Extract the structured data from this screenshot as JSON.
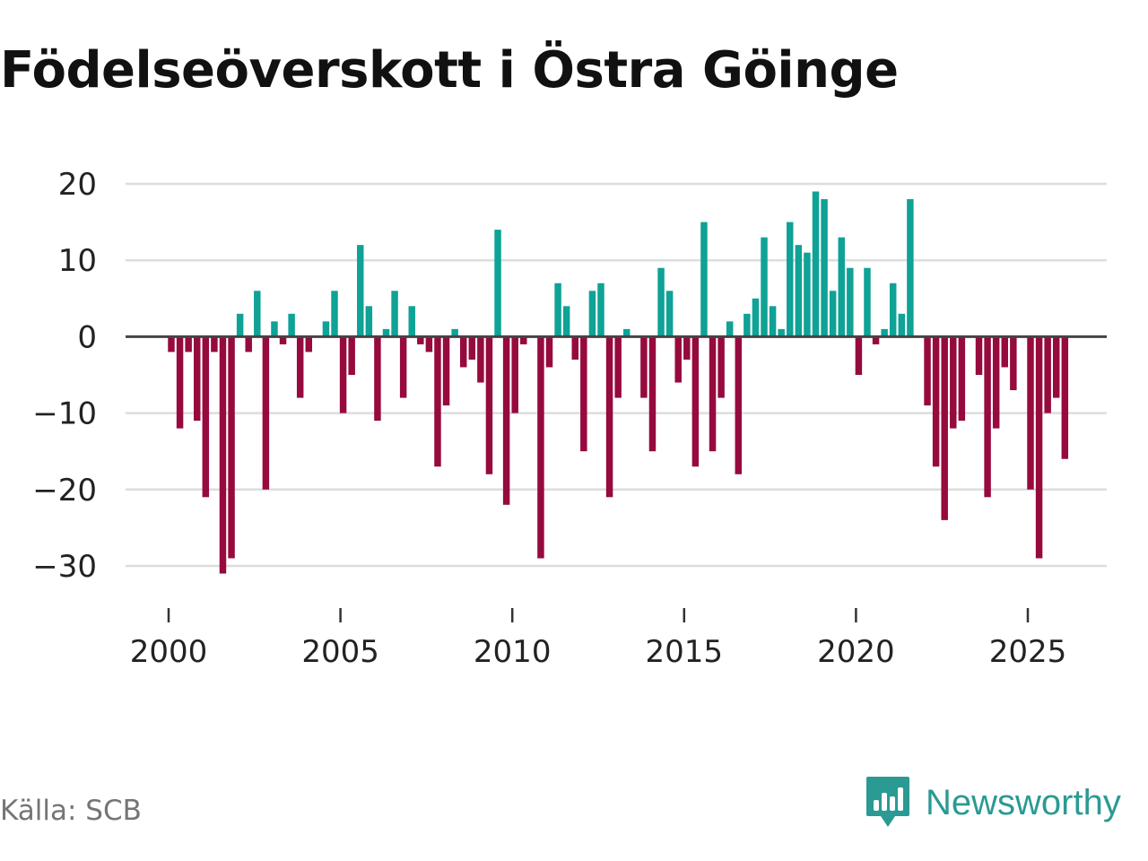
{
  "title": "Födelseöverskott i Östra Göinge",
  "source": "Källa: SCB",
  "brand": {
    "name": "Newsworthy",
    "icon": "newsworthy-logo-icon",
    "color": "#2a9a93"
  },
  "colors": {
    "positive": "#0fa296",
    "negative": "#960a3e",
    "zero_line": "#444444",
    "grid": "#dddddd"
  },
  "chart_data": {
    "type": "bar",
    "title": "Födelseöverskott i Östra Göinge",
    "xlabel": "",
    "ylabel": "",
    "frequency": "quarterly",
    "start": "2000 Q1",
    "x_ticks": [
      2000,
      2005,
      2010,
      2015,
      2020,
      2025
    ],
    "x_tick_labels": [
      "2000",
      "2005",
      "2010",
      "2015",
      "2020",
      "2025"
    ],
    "y_ticks": [
      20,
      10,
      0,
      -10,
      -20,
      -30
    ],
    "y_tick_labels": [
      "20",
      "10",
      "0",
      "−10",
      "−20",
      "−30"
    ],
    "ylim": [
      -35,
      20
    ],
    "xlim": [
      1998.9,
      2027.3
    ],
    "grid": true,
    "series": [
      {
        "name": "Födelseöverskott",
        "values": [
          -2,
          -12,
          -2,
          -11,
          -21,
          -2,
          -31,
          -29,
          3,
          -2,
          6,
          -20,
          2,
          -1,
          3,
          -8,
          -2,
          0,
          2,
          6,
          -10,
          -5,
          12,
          4,
          -11,
          1,
          6,
          -8,
          4,
          -1,
          -2,
          -17,
          -9,
          1,
          -4,
          -3,
          -6,
          -18,
          14,
          -22,
          -10,
          -1,
          0,
          -29,
          -4,
          7,
          4,
          -3,
          -15,
          6,
          7,
          -21,
          -8,
          1,
          0,
          -8,
          -15,
          9,
          6,
          -6,
          -3,
          -17,
          15,
          -15,
          -8,
          2,
          -18,
          3,
          5,
          13,
          4,
          1,
          15,
          12,
          11,
          19,
          18,
          6,
          13,
          9,
          -5,
          9,
          -1,
          1,
          7,
          3,
          18,
          0,
          -9,
          -17,
          -24,
          -12,
          -11,
          0,
          -5,
          -21,
          -12,
          -4,
          -7,
          0,
          -20,
          -29,
          -10,
          -8,
          -16
        ]
      }
    ]
  }
}
